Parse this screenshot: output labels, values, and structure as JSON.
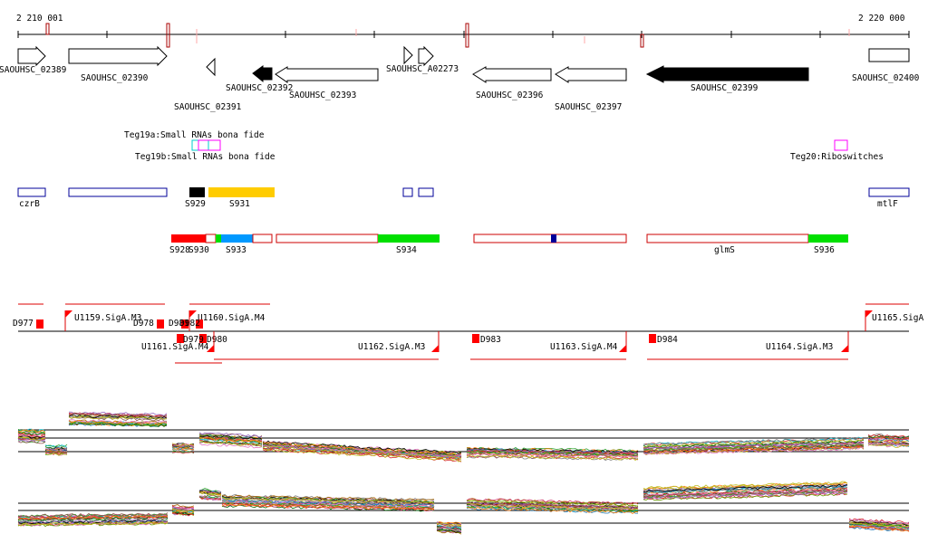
{
  "ruler": {
    "start_label": "2 210 001",
    "end_label": "2 220 000"
  },
  "genes": [
    {
      "name": "SAOUHSC_02389",
      "label": "SAOUHSC_02389",
      "strand": "+",
      "fill": "white"
    },
    {
      "name": "SAOUHSC_02390",
      "label": "SAOUHSC_02390",
      "strand": "+",
      "fill": "white"
    },
    {
      "name": "SAOUHSC_02391",
      "label": "SAOUHSC_02391",
      "strand": "-",
      "fill": "white"
    },
    {
      "name": "SAOUHSC_02392",
      "label": "SAOUHSC_02392",
      "strand": "-",
      "fill": "black"
    },
    {
      "name": "SAOUHSC_02393",
      "label": "SAOUHSC_02393",
      "strand": "-",
      "fill": "white"
    },
    {
      "name": "SAOUHSC_A02273",
      "label": "SAOUHSC_A02273",
      "strand": "+",
      "fill": "white"
    },
    {
      "name": "SAOUHSC_02396",
      "label": "SAOUHSC_02396",
      "strand": "-",
      "fill": "white"
    },
    {
      "name": "SAOUHSC_02397",
      "label": "SAOUHSC_02397",
      "strand": "-",
      "fill": "white"
    },
    {
      "name": "SAOUHSC_02399",
      "label": "SAOUHSC_02399",
      "strand": "-",
      "fill": "black"
    },
    {
      "name": "SAOUHSC_02400",
      "label": "SAOUHSC_02400",
      "strand": "+",
      "fill": "white"
    }
  ],
  "small_rnas": [
    {
      "label": "Teg19a:Small RNAs bona fide"
    },
    {
      "label": "Teg19b:Small RNAs bona fide"
    },
    {
      "label": "Teg20:Riboswitches"
    }
  ],
  "features": [
    {
      "label": "czrB"
    },
    {
      "label": "S929"
    },
    {
      "label": "S931"
    },
    {
      "label": "mtlF"
    }
  ],
  "segments": [
    {
      "label": "S928"
    },
    {
      "label": "S930"
    },
    {
      "label": "S933"
    },
    {
      "label": "S934"
    },
    {
      "label": "glmS"
    },
    {
      "label": "S936"
    }
  ],
  "promoters_top": [
    {
      "label": "U1159.SigA.M3"
    },
    {
      "label": "U1160.SigA.M4"
    },
    {
      "label": "U1165.SigA"
    }
  ],
  "promoters_bottom": [
    {
      "label": "U1161.SigA.M4"
    },
    {
      "label": "U1162.SigA.M3"
    },
    {
      "label": "U1163.SigA.M4"
    },
    {
      "label": "U1164.SigA.M3"
    }
  ],
  "terminators": [
    {
      "label": "D977"
    },
    {
      "label": "D978"
    },
    {
      "label": "D981"
    },
    {
      "label": "D982"
    },
    {
      "label": "D979"
    },
    {
      "label": "D980"
    },
    {
      "label": "D983"
    },
    {
      "label": "D984"
    }
  ],
  "colors": {
    "red": "#ff0000",
    "dark_red": "#aa0000",
    "blue": "#000099",
    "green": "#00e000",
    "sky_blue": "#0099ff",
    "yellow": "#ffcc00",
    "magenta": "#ff00ff",
    "cyan": "#00cccc"
  }
}
